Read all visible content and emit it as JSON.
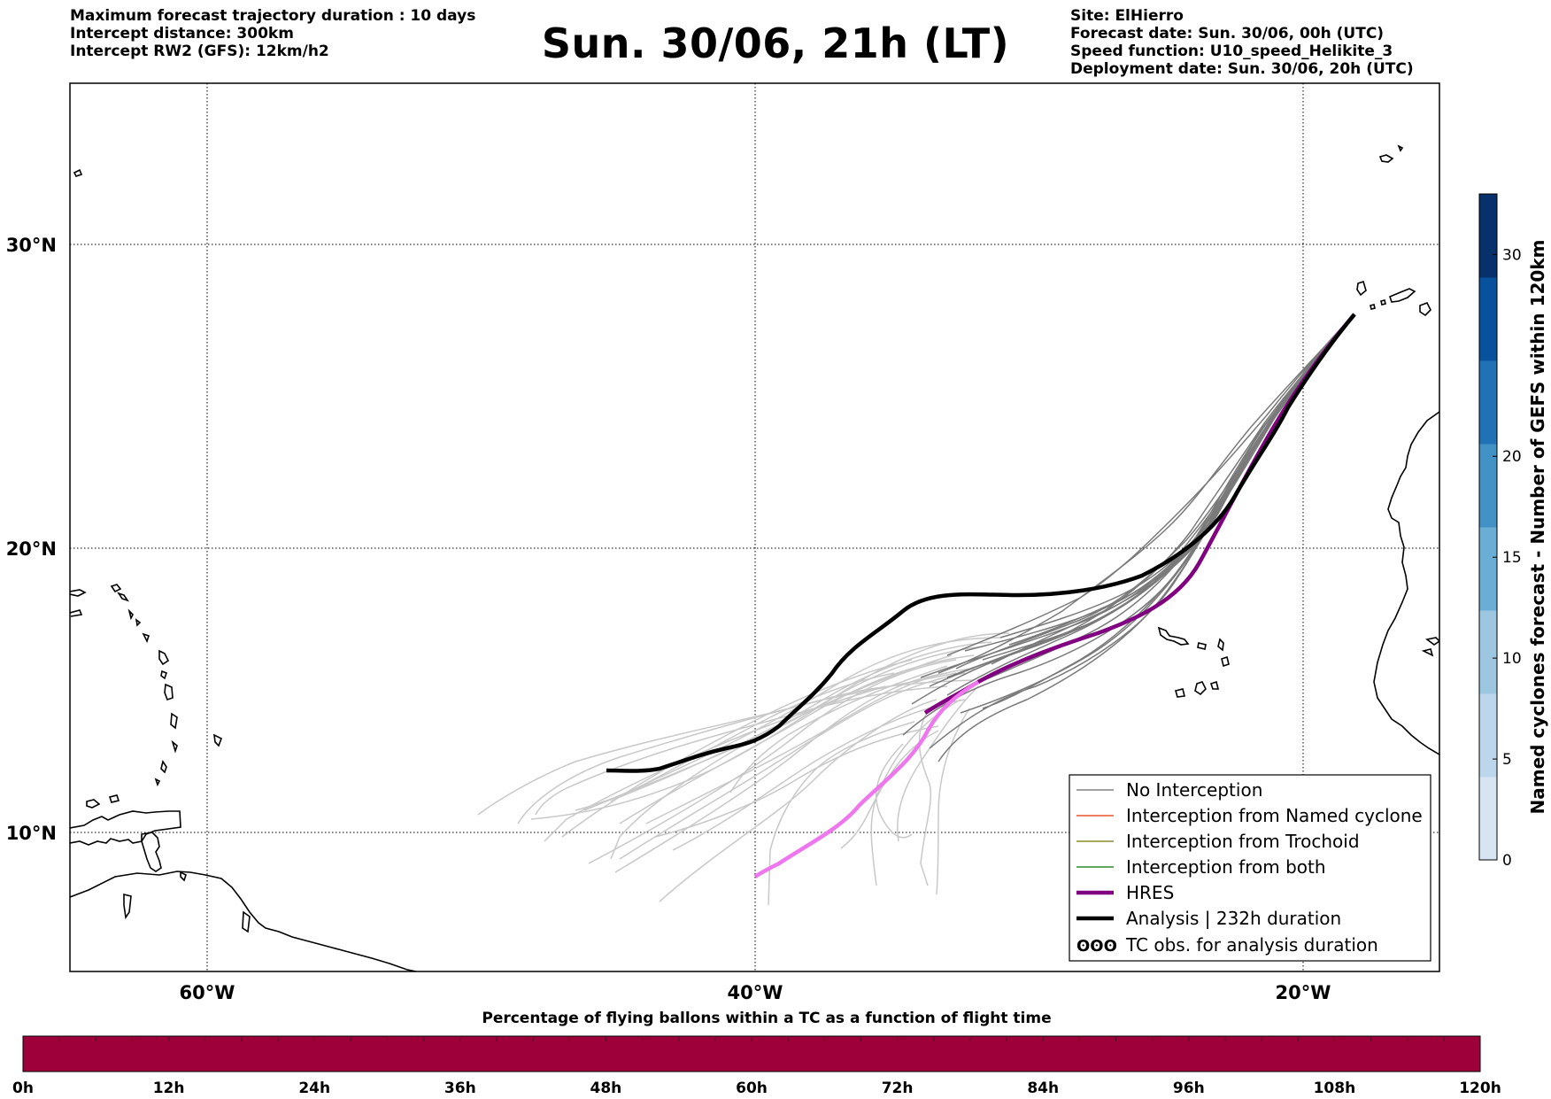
{
  "header": {
    "left_lines": [
      "Maximum forecast trajectory duration : 10 days",
      "Intercept distance: 300km",
      "Intercept RW2 (GFS):  12km/h2"
    ],
    "title": "Sun. 30/06, 21h (LT)",
    "right_lines": [
      "Site: ElHierro",
      "Forecast date: Sun. 30/06, 00h (UTC)",
      "Speed function: U10_speed_Helikite_3",
      "Deployment date: Sun. 30/06, 20h (UTC)"
    ]
  },
  "map": {
    "lat_labels": [
      "30°N",
      "20°N",
      "10°N"
    ],
    "lon_labels": [
      "60°W",
      "40°W",
      "20°W"
    ],
    "colors": {
      "no_interception": "#808080",
      "ensemble_faint": "#c8c8c8",
      "named_cyclone": "#e8562a",
      "trochoid": "#8a8a2a",
      "both": "#2e8b2e",
      "hres": "#800080",
      "hres_light": "#ee77ee",
      "analysis": "#000000"
    }
  },
  "legend": {
    "items": [
      {
        "label": "No Interception",
        "color": "#808080",
        "style": "thin"
      },
      {
        "label": "Interception from Named cyclone",
        "color": "#e8562a",
        "style": "thin"
      },
      {
        "label": "Interception from Trochoid",
        "color": "#8a8a2a",
        "style": "thin"
      },
      {
        "label": "Interception from both",
        "color": "#2e8b2e",
        "style": "thin"
      },
      {
        "label": "HRES",
        "color": "#800080",
        "style": "thick"
      },
      {
        "label": "Analysis | 232h duration",
        "color": "#000000",
        "style": "thick"
      },
      {
        "label": "TC obs. for analysis duration",
        "color": "#000000",
        "style": "symbol",
        "symbol": "ʘʘʘ"
      }
    ]
  },
  "colorbar_right": {
    "label": "Named cyclones forecast - Number of GEFS within 120km",
    "ticks": [
      "0",
      "5",
      "10",
      "15",
      "20",
      "30"
    ],
    "tick_values": [
      0,
      5,
      10,
      15,
      20,
      30
    ],
    "max": 33,
    "colors": [
      "#d6e4f3",
      "#bcd6eb",
      "#9dc6e1",
      "#6aaed6",
      "#4292c6",
      "#2171b5",
      "#08519c",
      "#08306b"
    ]
  },
  "colorbar_bottom": {
    "title": "Percentage of flying ballons within a TC as a function of flight time",
    "ticks": [
      "0h",
      "12h",
      "24h",
      "36h",
      "48h",
      "60h",
      "72h",
      "84h",
      "96h",
      "108h",
      "120h"
    ],
    "fill_color": "#9e003a"
  }
}
